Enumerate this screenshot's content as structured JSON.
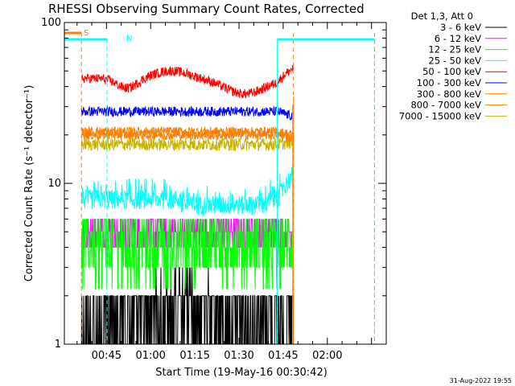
{
  "chart_data": {
    "type": "line",
    "title": "RHESSI Observing Summary Count Rates, Corrected",
    "xlabel": "Start Time (19-May-16 00:30:42)",
    "ylabel": "Corrected Count Rate (s⁻¹ detector⁻¹)",
    "ylim": [
      1,
      100
    ],
    "yscale": "log",
    "xlim_minutes": [
      30.7,
      140
    ],
    "x_ticks": [
      {
        "label": "00:45",
        "minutes": 45
      },
      {
        "label": "01:00",
        "minutes": 60
      },
      {
        "label": "01:15",
        "minutes": 75
      },
      {
        "label": "01:30",
        "minutes": 90
      },
      {
        "label": "01:45",
        "minutes": 105
      },
      {
        "label": "02:00",
        "minutes": 120
      }
    ],
    "y_ticks": [
      {
        "label": "1",
        "value": 1
      },
      {
        "label": "10",
        "value": 10
      },
      {
        "label": "100",
        "value": 100
      }
    ],
    "legend_header": "Det 1,3, Att 0",
    "legend_position": "right",
    "data_range_minutes": [
      36.5,
      108.5
    ],
    "series": [
      {
        "name": "3 - 6 keV",
        "color": "#000000",
        "level": 1.4,
        "levels": [
          1.0,
          2.0
        ],
        "quantized": true
      },
      {
        "name": "6 - 12 keV",
        "color": "#ff00ff",
        "level": 5.0,
        "levels": [
          4.0,
          5.0,
          6.0
        ],
        "quantized": true
      },
      {
        "name": "12 - 25 keV",
        "color": "#00ff00",
        "level": 4.6,
        "levels": [
          3.0,
          4.0,
          5.0,
          6.0
        ],
        "quantized": true
      },
      {
        "name": "25 - 50 keV",
        "color": "#00ffff",
        "level": 8.0,
        "end": 11.5
      },
      {
        "name": "50 - 100 keV",
        "color": "#ff0000",
        "level": 45.0,
        "bump": 50.0,
        "dip": 36.0,
        "end": 52.0
      },
      {
        "name": "100 - 300 keV",
        "color": "#0000ff",
        "level": 28.0,
        "end": 26.0
      },
      {
        "name": "300 - 800 keV",
        "color": "#ff8000",
        "level": 21.0,
        "end": 20.0
      },
      {
        "name": "800 - 7000 keV",
        "color": "#ff8000",
        "level": 20.0,
        "end": 19.0
      },
      {
        "name": "7000 - 15000 keV",
        "color": "#c8b400",
        "level": 17.5,
        "end": 18.0
      }
    ],
    "annotations": [
      {
        "label": "S",
        "color": "#ff8000",
        "bar_minutes": [
          30.7,
          36.5
        ],
        "lines_minutes": [
          36.5,
          108.5,
          136
        ]
      },
      {
        "label": "N",
        "color": "#00ffff",
        "bar_minutes": [
          30.7,
          45.2,
          103,
          136
        ],
        "lines_minutes": [
          45.2,
          103,
          136
        ]
      }
    ],
    "timestamp": "31-Aug-2022 19:55"
  }
}
